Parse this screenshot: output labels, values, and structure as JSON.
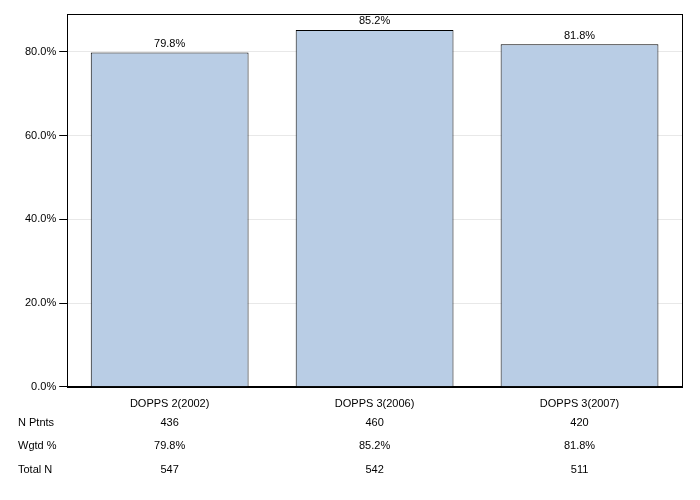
{
  "chart_data": {
    "type": "bar",
    "categories": [
      "DOPPS 2(2002)",
      "DOPPS 3(2006)",
      "DOPPS 3(2007)"
    ],
    "values": [
      79.8,
      85.2,
      81.8
    ],
    "value_labels": [
      "79.8%",
      "85.2%",
      "81.8%"
    ],
    "data_labels": true,
    "color": "#b9cde5",
    "ylim": [
      0,
      89
    ],
    "yticks": [
      {
        "value": 0,
        "label": "0.0%"
      },
      {
        "value": 20,
        "label": "20.0%"
      },
      {
        "value": 40,
        "label": "40.0%"
      },
      {
        "value": 60,
        "label": "60.0%"
      },
      {
        "value": 80,
        "label": "80.0%"
      }
    ],
    "grid": true,
    "table": {
      "rows": [
        {
          "label": "N Ptnts",
          "values": [
            436,
            460,
            420
          ]
        },
        {
          "label": "Wgtd %",
          "values": [
            "79.8%",
            "85.2%",
            "81.8%"
          ]
        },
        {
          "label": "Total N",
          "values": [
            547,
            542,
            511
          ]
        }
      ]
    }
  }
}
